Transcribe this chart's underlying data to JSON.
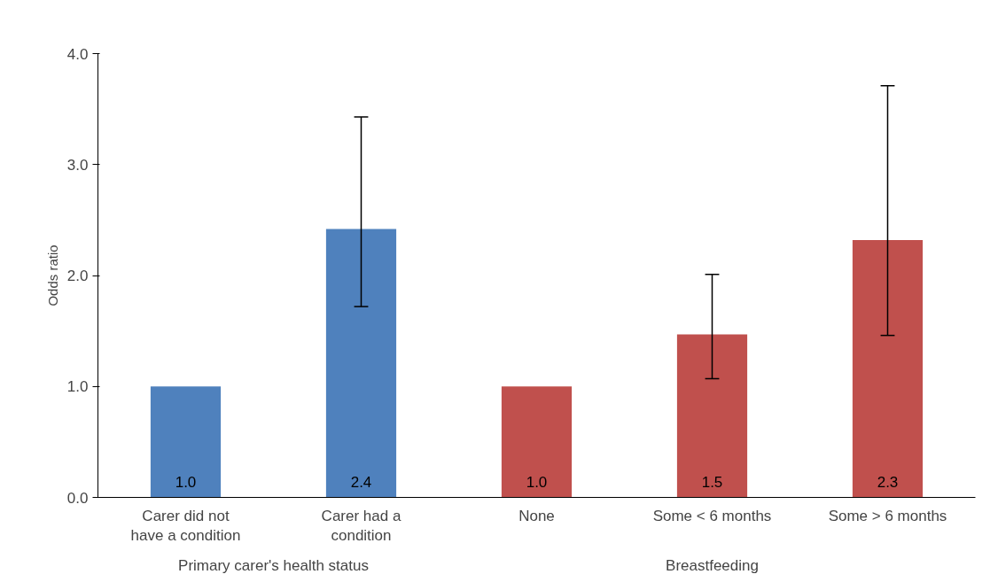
{
  "chart_data": {
    "type": "bar",
    "ylabel": "Odds ratio",
    "categories": [
      "Carer did not have a condition",
      "Carer had a condition",
      "None",
      "Some < 6 months",
      "Some > 6 months"
    ],
    "series": [
      {
        "color": "#4f81bd",
        "values": [
          1.0,
          2.42,
          null,
          null,
          null
        ],
        "value_labels": [
          "1.0",
          "2.4",
          null,
          null,
          null
        ],
        "errors": [
          null,
          [
            1.72,
            3.43
          ],
          null,
          null,
          null
        ]
      },
      {
        "color": "#c0504d",
        "values": [
          null,
          null,
          1.0,
          1.47,
          2.32
        ],
        "value_labels": [
          null,
          null,
          "1.0",
          "1.5",
          "2.3"
        ],
        "errors": [
          null,
          null,
          null,
          [
            1.07,
            2.01
          ],
          [
            1.46,
            3.71
          ]
        ]
      }
    ],
    "annotations": [
      "Primary carer's health status",
      "Breastfeeding"
    ],
    "ylim": [
      0,
      4
    ],
    "yticks": [
      {
        "value": 0,
        "label": "0.0"
      },
      {
        "value": 1,
        "label": "1.0"
      },
      {
        "value": 2,
        "label": "2.0"
      },
      {
        "value": 3,
        "label": "3.0"
      },
      {
        "value": 4,
        "label": "4.0"
      }
    ],
    "grid": false
  }
}
